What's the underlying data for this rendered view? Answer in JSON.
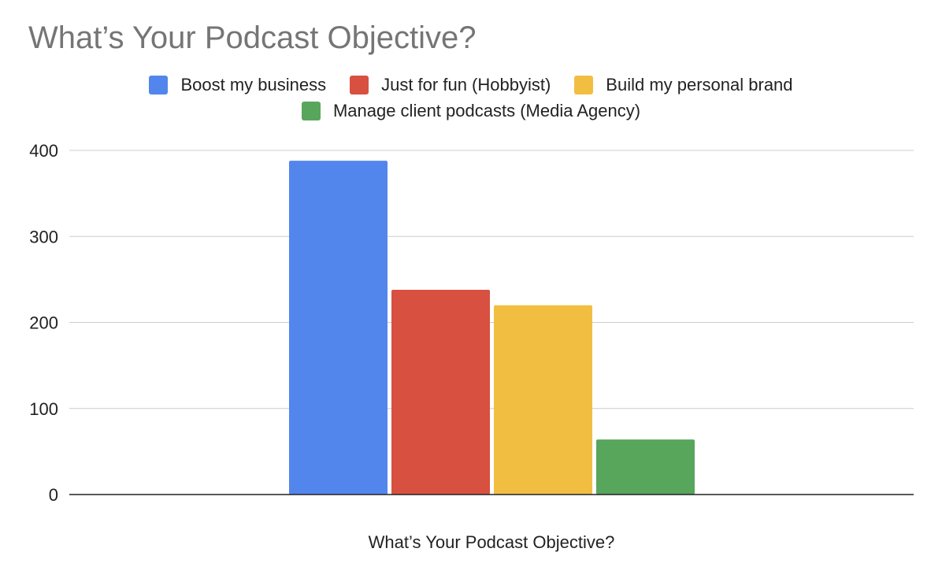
{
  "chart_data": {
    "type": "bar",
    "title": "What’s Your Podcast Objective?",
    "xlabel": "What’s Your Podcast Objective?",
    "ylabel": "",
    "ylim": [
      0,
      400
    ],
    "yticks": [
      0,
      100,
      200,
      300,
      400
    ],
    "grid": true,
    "legend_position": "top",
    "series": [
      {
        "name": "Boost my business",
        "value": 388,
        "color": "#5286EC"
      },
      {
        "name": "Just for fun (Hobbyist)",
        "value": 238,
        "color": "#D85040"
      },
      {
        "name": "Build my personal brand",
        "value": 220,
        "color": "#F2BE42"
      },
      {
        "name": "Manage client podcasts (Media Agency)",
        "value": 64,
        "color": "#58A55C"
      }
    ]
  }
}
